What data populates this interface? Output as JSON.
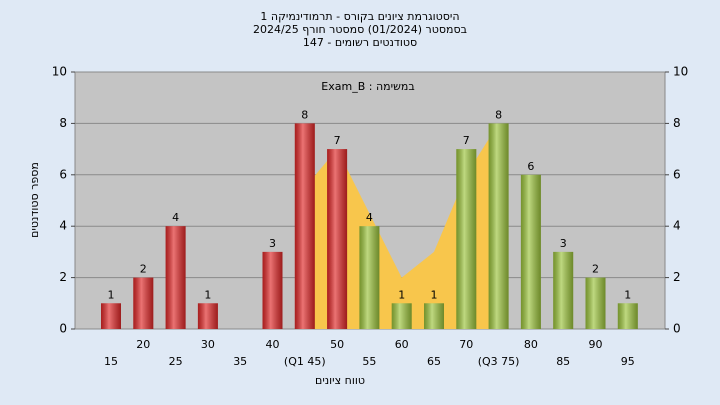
{
  "chart_data": {
    "type": "bar",
    "title": "היסטוגרמת ציונים בקורס - תרמודינמיקה 1",
    "subtitle": "בסמסטר  (01/2024)  סמסטר חורף 2024/25",
    "enrolled": "147 - סטודנטים רשומים",
    "annotation": "Exam_B : במשימה",
    "y_label": "מספר סטודנטים",
    "x_label": "טווח ציונים",
    "categories": [
      "15",
      "20",
      "25",
      "30",
      "35",
      "40",
      "(Q1 45)",
      "50",
      "55",
      "60",
      "65",
      "70",
      "(Q3 75)",
      "80",
      "85",
      "90",
      "95"
    ],
    "values": [
      1,
      2,
      4,
      1,
      0,
      3,
      8,
      7,
      4,
      1,
      1,
      7,
      8,
      6,
      3,
      2,
      1
    ],
    "colors": [
      "#e02828",
      "#e02828",
      "#e02828",
      "#e02828",
      "#e02828",
      "#e02828",
      "#e02828",
      "#e02828",
      "#9cc43c",
      "#9cc43c",
      "#9cc43c",
      "#9cc43c",
      "#9cc43c",
      "#9cc43c",
      "#9cc43c",
      "#9cc43c",
      "#9cc43c"
    ],
    "area": {
      "color": "#f8c64c",
      "values": [
        null,
        null,
        null,
        null,
        null,
        null,
        5.5,
        7,
        4.5,
        2,
        3,
        6,
        8,
        null,
        null,
        null,
        null
      ]
    },
    "ylim": [
      0,
      10
    ],
    "yticks": [
      0,
      2,
      4,
      6,
      8,
      10
    ],
    "y2lim": [
      0,
      10
    ],
    "y2ticks": [
      0,
      2,
      4,
      6,
      8,
      10
    ],
    "grid": true
  }
}
